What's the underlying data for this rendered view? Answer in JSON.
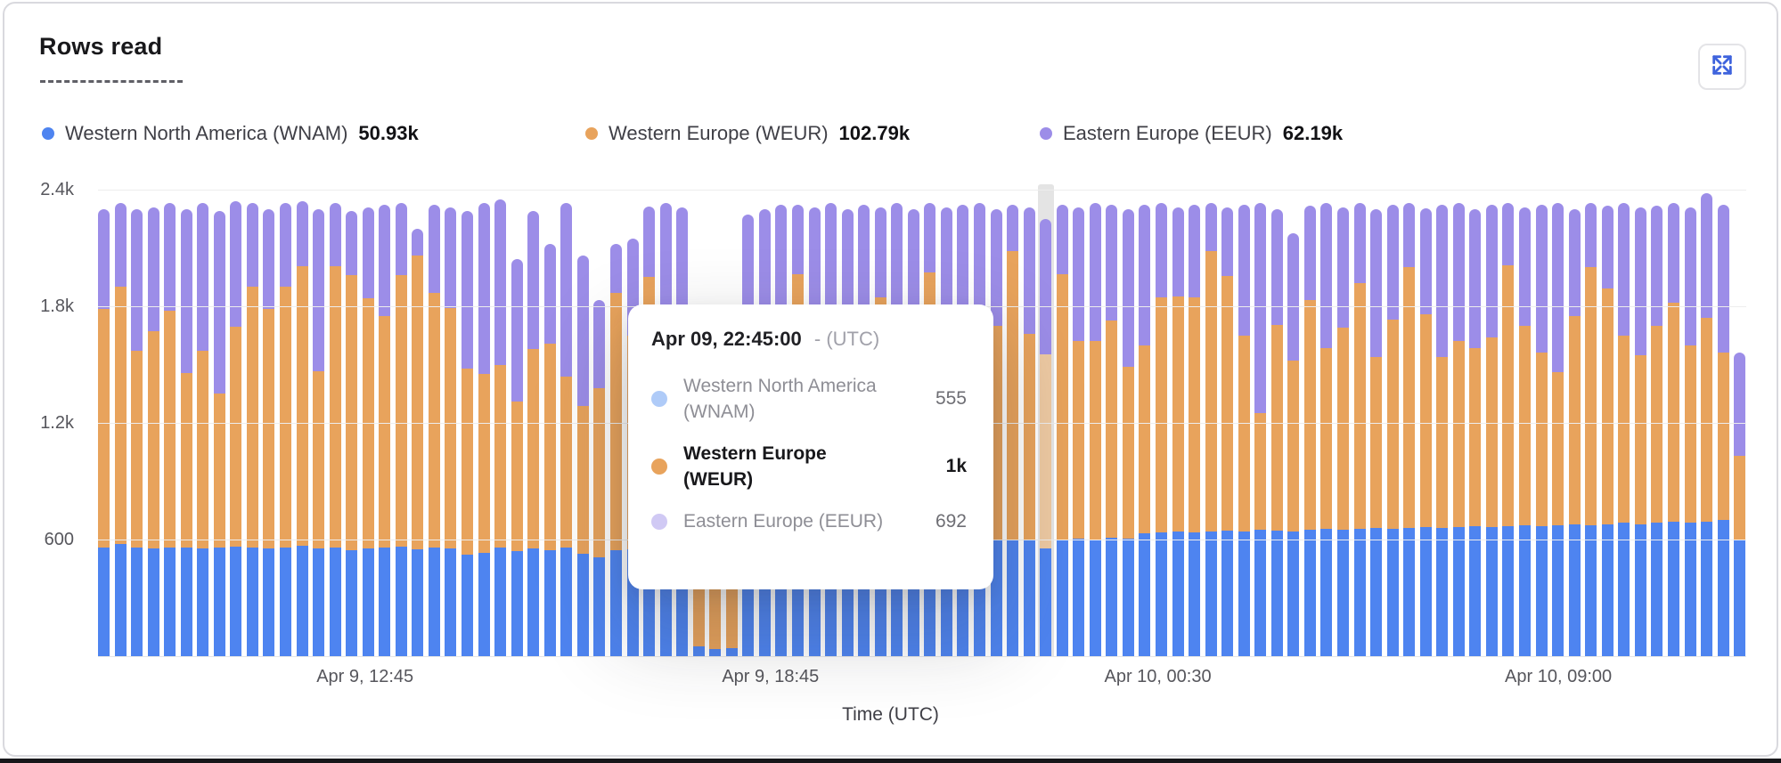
{
  "header": {
    "title": "Rows read"
  },
  "controls": {
    "expand_icon": "expand-arrows"
  },
  "legend": [
    {
      "label": "Western North America (WNAM)",
      "value": "50.93k",
      "color": "#4E84F0"
    },
    {
      "label": "Western Europe (WEUR)",
      "value": "102.79k",
      "color": "#E8A35C"
    },
    {
      "label": "Eastern Europe (EEUR)",
      "value": "62.19k",
      "color": "#9C8DE8"
    }
  ],
  "tooltip": {
    "timestamp": "Apr 09, 22:45:00",
    "timezone_suffix": "- (UTC)",
    "rows": [
      {
        "label": "Western North America (WNAM)",
        "value": "555",
        "emphasis": false,
        "dot_color": "#AFCBF8"
      },
      {
        "label": "Western Europe (WEUR)",
        "value": "1k",
        "emphasis": true,
        "dot_color": "#E8A35C"
      },
      {
        "label": "Eastern Europe (EEUR)",
        "value": "692",
        "emphasis": false,
        "dot_color": "#D0C9F4"
      }
    ]
  },
  "chart_data": {
    "type": "bar",
    "stacked": true,
    "title": "Rows read",
    "xlabel": "Time (UTC)",
    "ylabel": "",
    "ylim": [
      0,
      2400
    ],
    "grid": true,
    "legend_position": "top",
    "y_ticks": [
      {
        "label": "600",
        "value": 600
      },
      {
        "label": "1.2k",
        "value": 1200
      },
      {
        "label": "1.8k",
        "value": 1800
      },
      {
        "label": "2.4k",
        "value": 2400
      }
    ],
    "x_tick_labels": [
      {
        "label": "Apr 9, 12:45",
        "pos": 0.162
      },
      {
        "label": "Apr 9, 18:45",
        "pos": 0.408
      },
      {
        "label": "Apr 10, 00:30",
        "pos": 0.643
      },
      {
        "label": "Apr 10, 09:00",
        "pos": 0.886
      }
    ],
    "hovered_index": 57,
    "hovered_segment_fill": "#EDC9A2",
    "hovered_values": {
      "wnam": 555,
      "weur": 1000,
      "eeur": 692
    },
    "series": [
      {
        "name": "Western North America (WNAM)",
        "color": "#4E84F0",
        "values": [
          560,
          575,
          560,
          555,
          560,
          560,
          555,
          560,
          565,
          560,
          555,
          560,
          570,
          555,
          560,
          545,
          555,
          560,
          565,
          550,
          560,
          555,
          520,
          530,
          560,
          540,
          555,
          545,
          560,
          525,
          510,
          545,
          550,
          560,
          565,
          560,
          50,
          35,
          40,
          570,
          575,
          580,
          575,
          580,
          585,
          580,
          590,
          585,
          590,
          595,
          600,
          590,
          595,
          600,
          595,
          600,
          595,
          555,
          600,
          605,
          600,
          610,
          605,
          630,
          635,
          640,
          635,
          640,
          645,
          640,
          650,
          645,
          640,
          650,
          655,
          650,
          655,
          660,
          655,
          660,
          665,
          660,
          665,
          670,
          665,
          670,
          675,
          670,
          675,
          680,
          675,
          680,
          685,
          680,
          685,
          690,
          685,
          690,
          700,
          600
        ]
      },
      {
        "name": "Western Europe (WEUR)",
        "color": "#E8A35C",
        "values": [
          1226,
          1325,
          1011,
          1116,
          1217,
          896,
          1016,
          791,
          1129,
          1340,
          1231,
          1340,
          1436,
          910,
          1446,
          1415,
          1285,
          1190,
          1395,
          1510,
          1310,
          1235,
          960,
          920,
          940,
          770,
          1025,
          1065,
          880,
          760,
          870,
          1325,
          1100,
          1390,
          1055,
          980,
          1150,
          1180,
          1100,
          950,
          1035,
          1150,
          1390,
          1020,
          1115,
          980,
          1050,
          1261,
          1150,
          965,
          1375,
          1090,
          1165,
          1020,
          1105,
          1482,
          1065,
          1000,
          1365,
          1018,
          1020,
          1118,
          885,
          970,
          1211,
          1210,
          1211,
          1442,
          1313,
          1010,
          600,
          1060,
          880,
          1180,
          930,
          1040,
          1265,
          880,
          1075,
          1340,
          1095,
          880,
          955,
          915,
          975,
          1340,
          1025,
          890,
          785,
          1070,
          1325,
          1210,
          965,
          870,
          1015,
          1130,
          915,
          1050,
          860,
          430
        ]
      },
      {
        "name": "Eastern Europe (EEUR)",
        "color": "#9C8DE8",
        "values": [
          514,
          430,
          729,
          639,
          553,
          844,
          759,
          939,
          646,
          430,
          514,
          430,
          334,
          835,
          324,
          330,
          470,
          570,
          370,
          140,
          450,
          520,
          810,
          880,
          850,
          735,
          710,
          513,
          890,
          775,
          450,
          250,
          500,
          365,
          710,
          770,
          150,
          100,
          160,
          750,
          690,
          590,
          357,
          710,
          630,
          740,
          680,
          464,
          590,
          740,
          355,
          630,
          560,
          710,
          600,
          238,
          650,
          692,
          357,
          687,
          710,
          592,
          810,
          720,
          484,
          460,
          474,
          248,
          352,
          670,
          1080,
          595,
          655,
          490,
          745,
          620,
          410,
          760,
          590,
          330,
          545,
          780,
          710,
          715,
          680,
          320,
          610,
          760,
          870,
          550,
          330,
          430,
          680,
          760,
          620,
          510,
          710,
          640,
          760,
          530
        ]
      }
    ]
  }
}
